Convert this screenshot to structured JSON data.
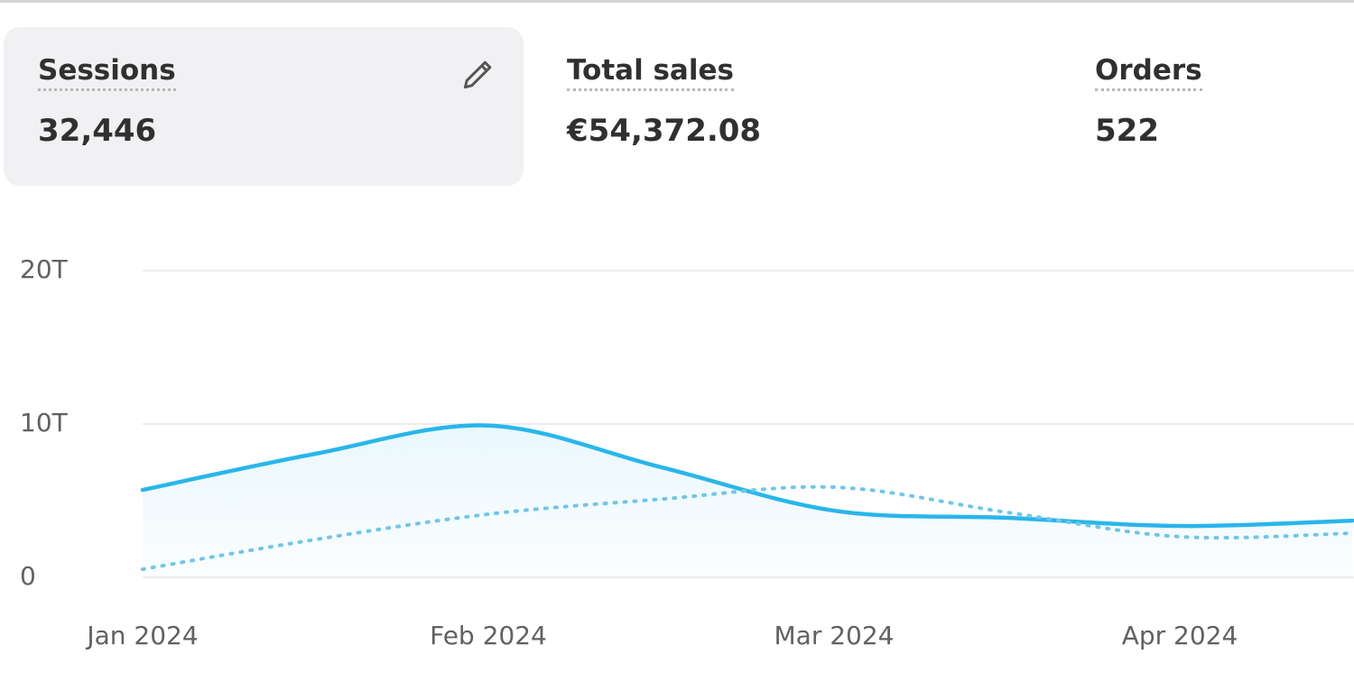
{
  "metrics": [
    {
      "label": "Sessions",
      "value": "32,446",
      "selected": true
    },
    {
      "label": "Total sales",
      "value": "€54,372.08",
      "selected": false
    },
    {
      "label": "Orders",
      "value": "522",
      "selected": false
    }
  ],
  "chart_data": {
    "type": "line",
    "categories": [
      "Jan 2024",
      null,
      "Feb 2024",
      null,
      "Mar 2024",
      null,
      "Apr 2024",
      null
    ],
    "series": [
      {
        "color": "#29b6ea",
        "dash": false,
        "fill": true,
        "values": [
          5700,
          8060,
          9900,
          7180,
          4350,
          3880,
          3350,
          3700
        ]
      },
      {
        "color": "#6fc6ea",
        "dash": true,
        "fill": false,
        "values": [
          530,
          2470,
          4120,
          5100,
          5880,
          4240,
          2650,
          2880
        ]
      }
    ],
    "ylim": [
      0,
      20000
    ],
    "yticks": [
      {
        "value": 0,
        "label": "0"
      },
      {
        "value": 10000,
        "label": "10T"
      },
      {
        "value": 20000,
        "label": "20T"
      }
    ],
    "grid": true
  }
}
